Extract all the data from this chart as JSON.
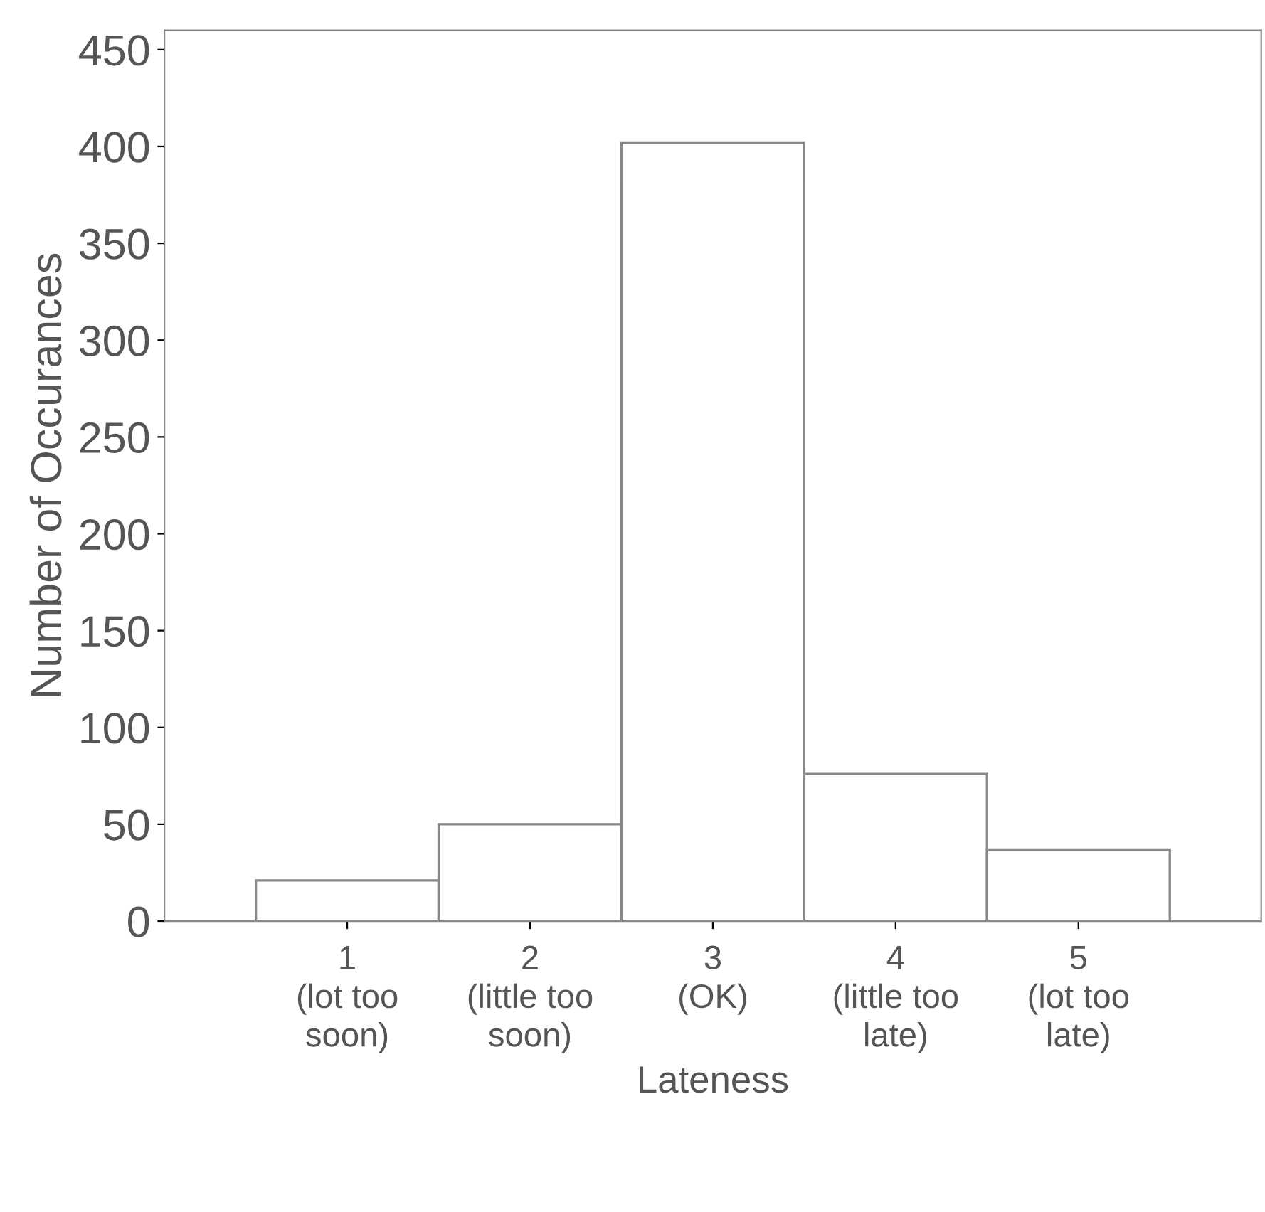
{
  "chart_data": {
    "type": "bar",
    "categories": [
      "1\n(lot too\nsoon)",
      "2\n(little too\nsoon)",
      "3\n(OK)",
      "4\n(little too\nlate)",
      "5\n(lot too\nlate)"
    ],
    "values": [
      21,
      50,
      402,
      76,
      37
    ],
    "color": "#ffffff",
    "xlabel": "Lateness",
    "ylabel": "Number of Occurances",
    "ylim": [
      0,
      460
    ],
    "yticks": [
      0,
      50,
      100,
      150,
      200,
      250,
      300,
      350,
      400,
      450
    ],
    "grid": false
  }
}
